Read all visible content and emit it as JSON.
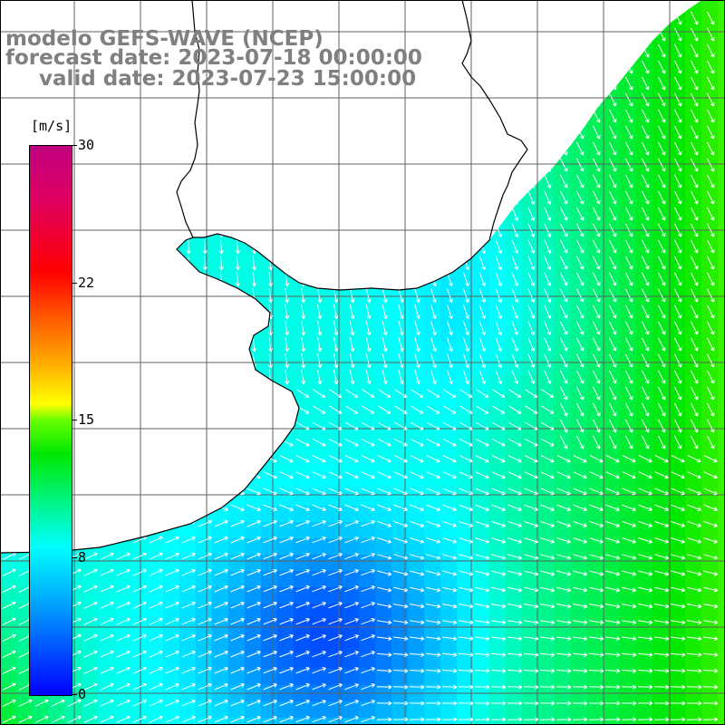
{
  "title": {
    "line1": "modelo GEFS-WAVE (NCEP)",
    "line2": "forecast date: 2023-07-18 00:00:00",
    "line3": "valid date: 2023-07-23 15:00:00"
  },
  "colorbar": {
    "unit": "[m/s]",
    "ticks": [
      "30",
      "22",
      "15",
      "8",
      "0"
    ],
    "tick_values": [
      30,
      22,
      15,
      8,
      0
    ],
    "range": [
      0,
      30
    ],
    "colors": [
      "#0000ff",
      "#00b0ff",
      "#00ffff",
      "#00e800",
      "#66ff00",
      "#ffff00",
      "#ffb000",
      "#ff6000",
      "#ff0000",
      "#e00060",
      "#c00080"
    ]
  },
  "map": {
    "variable": "wind speed with direction arrows",
    "land_color": "#ffffff",
    "grid_color": "#606060",
    "coastline_color": "#000000",
    "arrow_color": "#ffffff"
  }
}
